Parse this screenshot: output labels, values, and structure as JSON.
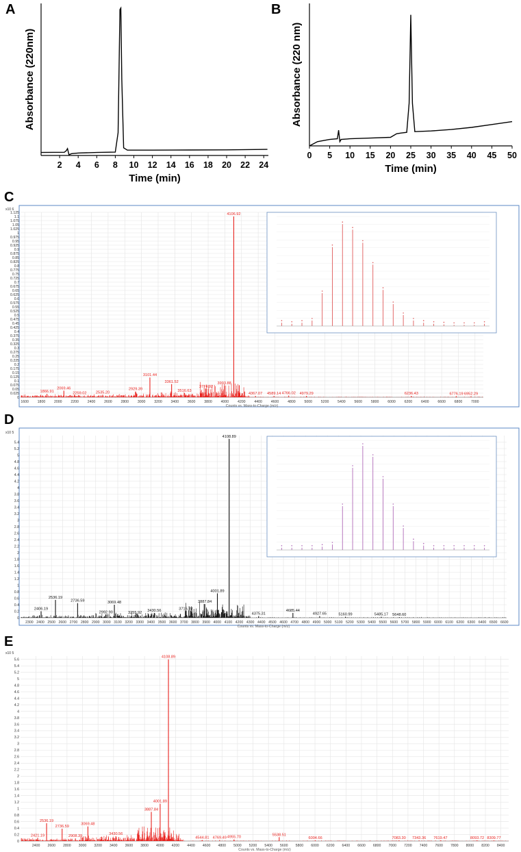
{
  "chart_data": [
    {
      "panel": "A",
      "type": "line",
      "xlabel": "Time (min)",
      "ylabel": "Absorbance (220nm)",
      "xlim": [
        0,
        24.5
      ],
      "ylim": [
        0,
        1
      ],
      "xticks": [
        2,
        4,
        6,
        8,
        10,
        12,
        14,
        16,
        18,
        20,
        22,
        24
      ],
      "x": [
        0,
        2.5,
        2.7,
        2.85,
        3.0,
        3.3,
        4,
        6,
        8.0,
        8.3,
        8.5,
        8.6,
        8.7,
        8.9,
        9.3,
        12,
        16,
        20,
        24.4
      ],
      "y": [
        0.02,
        0.021,
        0.03,
        0.045,
        0.005,
        0.012,
        0.016,
        0.02,
        0.022,
        0.15,
        0.96,
        0.97,
        0.5,
        0.05,
        0.035,
        0.035,
        0.036,
        0.037,
        0.04
      ]
    },
    {
      "panel": "B",
      "type": "line",
      "xlabel": "Time (min)",
      "ylabel": "Absorbance (220 nm)",
      "xlim": [
        0,
        50
      ],
      "ylim": [
        0,
        1
      ],
      "xticks": [
        0,
        5,
        10,
        15,
        20,
        25,
        30,
        35,
        40,
        45,
        50
      ],
      "x": [
        0,
        2,
        5,
        6.9,
        7.2,
        7.5,
        7.8,
        10,
        15,
        20,
        21.5,
        22.5,
        24,
        24.6,
        25.0,
        25.4,
        26,
        30,
        35,
        40,
        45,
        50
      ],
      "y": [
        0.0,
        0.03,
        0.045,
        0.05,
        0.11,
        0.03,
        0.045,
        0.05,
        0.055,
        0.06,
        0.085,
        0.09,
        0.095,
        0.3,
        0.92,
        0.3,
        0.1,
        0.105,
        0.115,
        0.13,
        0.15,
        0.17
      ]
    },
    {
      "panel": "C",
      "type": "bar",
      "xlabel": "Counts vs. Mass-to-Charge (m/z)",
      "y_exponent": "x10 6",
      "xlim": [
        1550,
        7100
      ],
      "ylim": [
        0,
        1.125
      ],
      "yticks": [
        "0",
        "0.025",
        "0.05",
        "0.075",
        "0.1",
        "0.125",
        "0.15",
        "0.175",
        "0.2",
        "0.225",
        "0.25",
        "0.275",
        "0.3",
        "0.325",
        "0.35",
        "0.375",
        "0.4",
        "0.425",
        "0.45",
        "0.475",
        "0.5",
        "0.525",
        "0.55",
        "0.575",
        "0.6",
        "0.625",
        "0.65",
        "0.675",
        "0.7",
        "0.725",
        "0.75",
        "0.775",
        "0.8",
        "0.825",
        "0.85",
        "0.875",
        "0.9",
        "0.925",
        "0.95",
        "0.975",
        "1",
        "1.025",
        "1.05",
        "1.075",
        "1.1",
        "1.125"
      ],
      "xticks": [
        1600,
        1800,
        2000,
        2200,
        2400,
        2600,
        2800,
        3000,
        3200,
        3400,
        3600,
        3800,
        4000,
        4200,
        4400,
        4600,
        4800,
        5000,
        5200,
        5400,
        5600,
        5800,
        6000,
        6200,
        6400,
        6600,
        6800,
        7000
      ],
      "peaks": [
        {
          "x": 1866.91,
          "y": 0.02,
          "label": "1866.91"
        },
        {
          "x": 2069.46,
          "y": 0.04,
          "label": "2069.46"
        },
        {
          "x": 2259.02,
          "y": 0.01,
          "label": "2259.02"
        },
        {
          "x": 2535.2,
          "y": 0.015,
          "label": "2535.20"
        },
        {
          "x": 2929.39,
          "y": 0.035,
          "label": "2929.39"
        },
        {
          "x": 3101.44,
          "y": 0.12,
          "label": "3101.44"
        },
        {
          "x": 3361.52,
          "y": 0.08,
          "label": "3361.52"
        },
        {
          "x": 3516.63,
          "y": 0.025,
          "label": "3516.63"
        },
        {
          "x": 3774.92,
          "y": 0.05,
          "label": "3774.92"
        },
        {
          "x": 3993.88,
          "y": 0.07,
          "label": "3993.88"
        },
        {
          "x": 4106.92,
          "y": 1.1,
          "label": "4106.92"
        },
        {
          "x": 4367.07,
          "y": 0.008,
          "label": "4367.07"
        },
        {
          "x": 4589.14,
          "y": 0.008,
          "label": "4589.14"
        },
        {
          "x": 4766.02,
          "y": 0.01,
          "label": "4766.02"
        },
        {
          "x": 4979.29,
          "y": 0.008,
          "label": "4979.29"
        },
        {
          "x": 6236.43,
          "y": 0.008,
          "label": "6236.43"
        },
        {
          "x": 6776.19,
          "y": 0.006,
          "label": "6776.19"
        },
        {
          "x": 6952.29,
          "y": 0.006,
          "label": "6952.29"
        }
      ],
      "inset_values": [
        0.03,
        0.02,
        0.03,
        0.05,
        0.3,
        0.72,
        0.93,
        0.88,
        0.76,
        0.56,
        0.33,
        0.2,
        0.1,
        0.05,
        0.03,
        0.02,
        0.015,
        0.01,
        0.01,
        0.01,
        0.02
      ]
    },
    {
      "panel": "D",
      "type": "bar",
      "xlabel": "Counts vs. Mass-to-Charge (m/z)",
      "y_exponent": "x10 5",
      "xlim": [
        2220,
        6620
      ],
      "ylim": [
        0,
        5.6
      ],
      "yticks": [
        "0",
        "0.2",
        "0.4",
        "0.6",
        "0.8",
        "1",
        "1.2",
        "1.4",
        "1.6",
        "1.8",
        "2",
        "2.2",
        "2.4",
        "2.6",
        "2.8",
        "3",
        "3.2",
        "3.4",
        "3.6",
        "3.8",
        "4",
        "4.2",
        "4.4",
        "4.6",
        "4.8",
        "5",
        "5.2",
        "5.4"
      ],
      "xticks": [
        2300,
        2400,
        2500,
        2600,
        2700,
        2800,
        2900,
        3000,
        3100,
        3200,
        3300,
        3400,
        3500,
        3600,
        3700,
        3800,
        3900,
        4000,
        4100,
        4200,
        4300,
        4400,
        4500,
        4600,
        4700,
        4800,
        4900,
        5000,
        5100,
        5200,
        5300,
        5400,
        5500,
        5600,
        5700,
        5800,
        5900,
        6000,
        6100,
        6200,
        6300,
        6400,
        6500,
        6600
      ],
      "peaks": [
        {
          "x": 2406.19,
          "y": 0.2,
          "label": "2406.19"
        },
        {
          "x": 2536.19,
          "y": 0.55,
          "label": "2536.19"
        },
        {
          "x": 2736.59,
          "y": 0.45,
          "label": "2736.59"
        },
        {
          "x": 2992.9,
          "y": 0.1,
          "label": "2992.90"
        },
        {
          "x": 3069.48,
          "y": 0.4,
          "label": "3069.48"
        },
        {
          "x": 3255.92,
          "y": 0.08,
          "label": "3255.92"
        },
        {
          "x": 3430.56,
          "y": 0.15,
          "label": "3430.56"
        },
        {
          "x": 3715.77,
          "y": 0.2,
          "label": "3715.77"
        },
        {
          "x": 3887.84,
          "y": 0.42,
          "label": "3887.84"
        },
        {
          "x": 4001.89,
          "y": 0.75,
          "label": "4001.89"
        },
        {
          "x": 4108.89,
          "y": 5.5,
          "label": "4108.89"
        },
        {
          "x": 4375.31,
          "y": 0.05,
          "label": "4375.31"
        },
        {
          "x": 4685.44,
          "y": 0.15,
          "label": "4685.44"
        },
        {
          "x": 4927.65,
          "y": 0.05,
          "label": "4927.65"
        },
        {
          "x": 5160.99,
          "y": 0.03,
          "label": "5160.99"
        },
        {
          "x": 5485.17,
          "y": 0.03,
          "label": "5485.17"
        },
        {
          "x": 5648.6,
          "y": 0.02,
          "label": "5648.60"
        }
      ],
      "inset_values": [
        0.02,
        0.02,
        0.02,
        0.02,
        0.03,
        0.05,
        0.4,
        0.75,
        0.95,
        0.85,
        0.65,
        0.4,
        0.2,
        0.08,
        0.04,
        0.02,
        0.02,
        0.02,
        0.02,
        0.02,
        0.02
      ]
    },
    {
      "panel": "E",
      "type": "bar",
      "xlabel": "Counts vs. Mass-to-Charge (m/z)",
      "y_exponent": "x10 5",
      "xlim": [
        2200,
        8500
      ],
      "ylim": [
        0,
        5.7
      ],
      "yticks": [
        "0",
        "0.2",
        "0.4",
        "0.6",
        "0.8",
        "1",
        "1.2",
        "1.4",
        "1.6",
        "1.8",
        "2",
        "2.2",
        "2.4",
        "2.6",
        "2.8",
        "3",
        "3.2",
        "3.4",
        "3.6",
        "3.8",
        "4",
        "4.2",
        "4.4",
        "4.6",
        "4.8",
        "5",
        "5.2",
        "5.4",
        "5.6"
      ],
      "xticks": [
        2400,
        2600,
        2800,
        3000,
        3200,
        3400,
        3600,
        3800,
        4000,
        4200,
        4400,
        4600,
        4800,
        5000,
        5200,
        5400,
        5600,
        5800,
        6000,
        6200,
        6400,
        6600,
        6800,
        7000,
        7200,
        7400,
        7600,
        7800,
        8000,
        8200,
        8400
      ],
      "peaks": [
        {
          "x": 2421.19,
          "y": 0.1,
          "label": "2421.19"
        },
        {
          "x": 2536.19,
          "y": 0.55,
          "label": "2536.19"
        },
        {
          "x": 2736.59,
          "y": 0.38,
          "label": "2736.59"
        },
        {
          "x": 2908.39,
          "y": 0.08,
          "label": "2908.39"
        },
        {
          "x": 3069.48,
          "y": 0.45,
          "label": "3069.48"
        },
        {
          "x": 3430.56,
          "y": 0.15,
          "label": "3430.56"
        },
        {
          "x": 3887.84,
          "y": 0.9,
          "label": "3887.84"
        },
        {
          "x": 4001.89,
          "y": 1.15,
          "label": "4001.89"
        },
        {
          "x": 4108.89,
          "y": 5.6,
          "label": "4108.89"
        },
        {
          "x": 4544.81,
          "y": 0.03,
          "label": "4544.81"
        },
        {
          "x": 4769.49,
          "y": 0.03,
          "label": "4769.49"
        },
        {
          "x": 4955.7,
          "y": 0.05,
          "label": "4955.70"
        },
        {
          "x": 5538.51,
          "y": 0.12,
          "label": "5538.51"
        },
        {
          "x": 6004.66,
          "y": 0.02,
          "label": "6004.66"
        },
        {
          "x": 7083.3,
          "y": 0.02,
          "label": "7083.30"
        },
        {
          "x": 7343.36,
          "y": 0.02,
          "label": "7343.36"
        },
        {
          "x": 7619.47,
          "y": 0.02,
          "label": "7619.47"
        },
        {
          "x": 8093.72,
          "y": 0.02,
          "label": "8093.72"
        },
        {
          "x": 8309.77,
          "y": 0.02,
          "label": "8309.77"
        }
      ]
    }
  ]
}
